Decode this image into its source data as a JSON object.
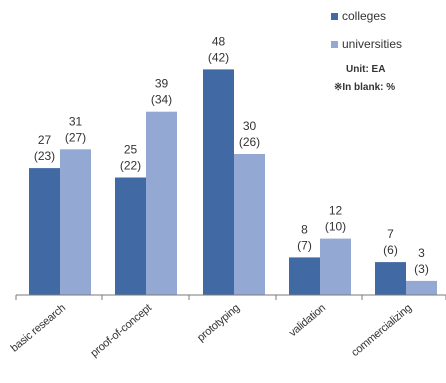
{
  "chart_data": {
    "type": "bar",
    "categories": [
      "basic research",
      "proof-of-concept",
      "prototyping",
      "validation",
      "commercializing"
    ],
    "series": [
      {
        "name": "colleges",
        "values": [
          27,
          25,
          48,
          8,
          7
        ],
        "percent": [
          23,
          22,
          42,
          7,
          6
        ],
        "color": "#4169a4"
      },
      {
        "name": "universities",
        "values": [
          31,
          39,
          30,
          12,
          3
        ],
        "percent": [
          27,
          34,
          26,
          10,
          3
        ],
        "color": "#93a9d4"
      }
    ],
    "legend_position": "top-right",
    "ylim": [
      0,
      50
    ],
    "grid": false
  },
  "notes": {
    "unit": "Unit: EA",
    "blank": "※In blank: %"
  }
}
